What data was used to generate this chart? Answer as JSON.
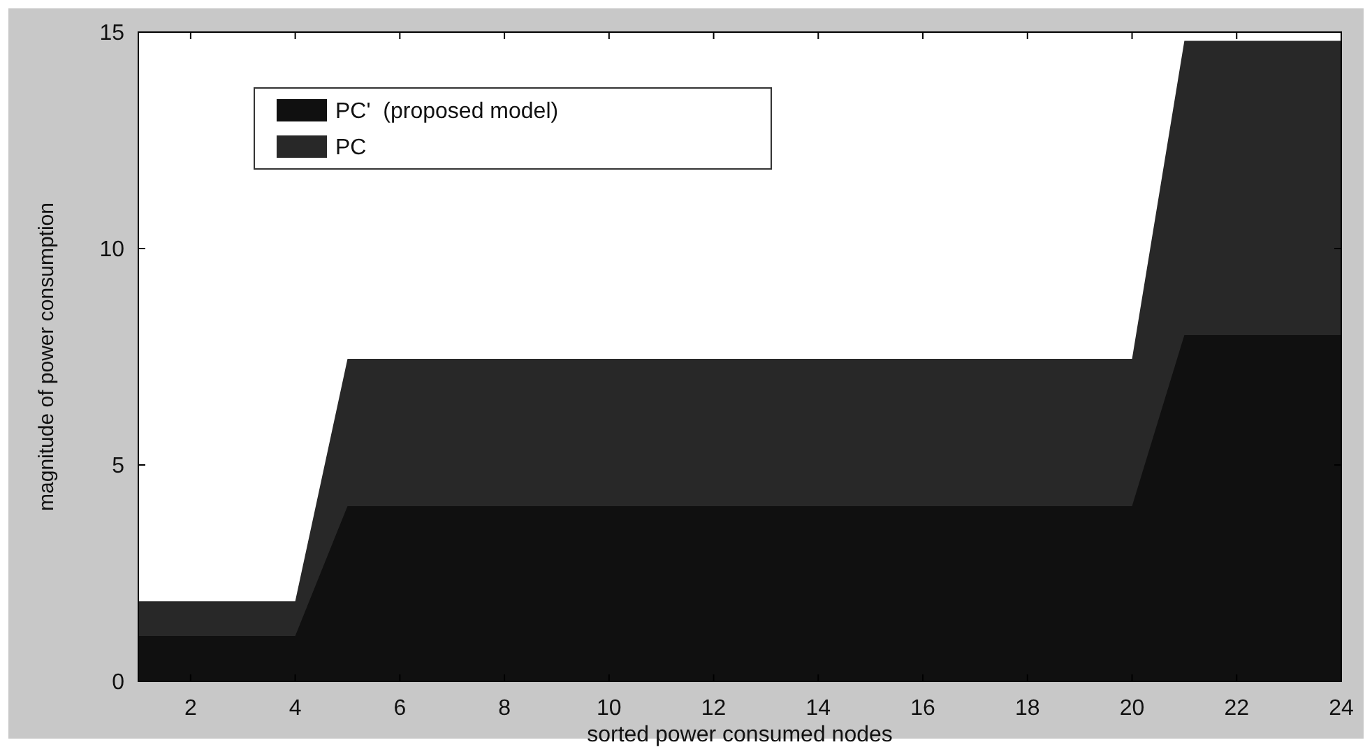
{
  "chart_data": {
    "type": "area",
    "xlabel": "sorted power consumed nodes",
    "ylabel": "magnitude of power consumption",
    "x": [
      1,
      2,
      3,
      4,
      5,
      6,
      7,
      8,
      9,
      10,
      11,
      12,
      13,
      14,
      15,
      16,
      17,
      18,
      19,
      20,
      21,
      22,
      23,
      24
    ],
    "series": [
      {
        "name": "PC'  (proposed model)",
        "color": "#101010",
        "values": [
          1.05,
          1.05,
          1.05,
          1.05,
          4.05,
          4.05,
          4.05,
          4.05,
          4.05,
          4.05,
          4.05,
          4.05,
          4.05,
          4.05,
          4.05,
          4.05,
          4.05,
          4.05,
          4.05,
          4.05,
          8.0,
          8.0,
          8.0,
          8.0
        ]
      },
      {
        "name": "PC",
        "color": "#282828",
        "values": [
          1.85,
          1.85,
          1.85,
          1.85,
          7.45,
          7.45,
          7.45,
          7.45,
          7.45,
          7.45,
          7.45,
          7.45,
          7.45,
          7.45,
          7.45,
          7.45,
          7.45,
          7.45,
          7.45,
          7.45,
          14.8,
          14.8,
          14.8,
          14.8
        ]
      }
    ],
    "xlim": [
      1,
      24
    ],
    "xticks": [
      2,
      4,
      6,
      8,
      10,
      12,
      14,
      16,
      18,
      20,
      22,
      24
    ],
    "ylim": [
      0,
      15
    ],
    "yticks": [
      0,
      5,
      10,
      15
    ],
    "grid": false,
    "legend": "top left"
  }
}
